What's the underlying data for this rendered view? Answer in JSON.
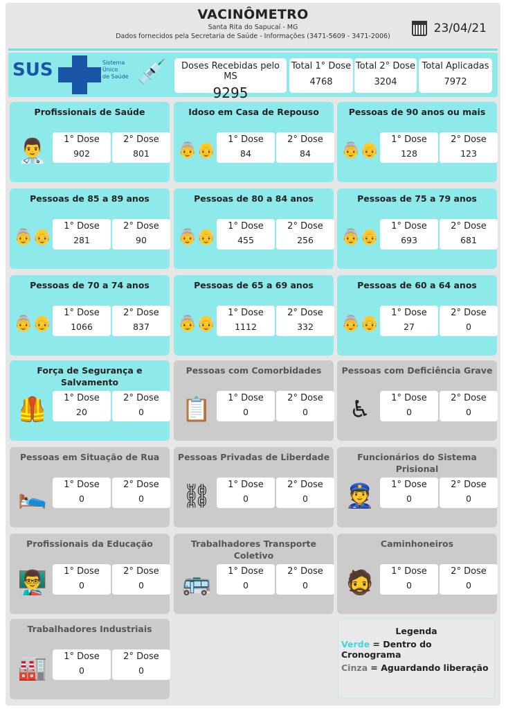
{
  "header": {
    "title": "VACINÔMETRO",
    "city": "Santa Rita do Sapucaí - MG",
    "source": "Dados fornecidos pela Secretaria de Saúde - Informações (3471-5609 - 3471-2006)",
    "date": "23/04/21"
  },
  "sus": {
    "logo": "SUS",
    "text1": "Sistema",
    "text2": "Único",
    "text3": "de Saúde"
  },
  "totals": [
    {
      "label": "Doses Recebidas pelo MS",
      "value": "9295"
    },
    {
      "label": "Total 1° Dose",
      "value": "4768"
    },
    {
      "label": "Total 2° Dose",
      "value": "3204"
    },
    {
      "label": "Total Aplicadas",
      "value": "7972"
    }
  ],
  "dose_labels": {
    "first": "1° Dose",
    "second": "2° Dose"
  },
  "colors": {
    "green": "#8eeaea",
    "gray": "#cbcbcb",
    "accent": "#3fd8e0"
  },
  "groups": [
    {
      "title": "Profissionais de Saúde",
      "d1": "902",
      "d2": "801",
      "status": "green",
      "icon": "health-worker-icon"
    },
    {
      "title": "Idoso em Casa de Repouso",
      "d1": "84",
      "d2": "84",
      "status": "green",
      "icon": "elderly-couple-icon"
    },
    {
      "title": "Pessoas de 90 anos ou mais",
      "d1": "128",
      "d2": "123",
      "status": "green",
      "icon": "elderly-couple-icon"
    },
    {
      "title": "Pessoas de 85 a 89 anos",
      "d1": "281",
      "d2": "90",
      "status": "green",
      "icon": "elderly-couple-icon"
    },
    {
      "title": "Pessoas de 80 a 84 anos",
      "d1": "455",
      "d2": "256",
      "status": "green",
      "icon": "elderly-couple-icon"
    },
    {
      "title": "Pessoas de 75 a 79 anos",
      "d1": "693",
      "d2": "681",
      "status": "green",
      "icon": "elderly-couple-icon"
    },
    {
      "title": "Pessoas de 70 a 74 anos",
      "d1": "1066",
      "d2": "837",
      "status": "green",
      "icon": "elderly-couple-icon"
    },
    {
      "title": "Pessoas de 65 a 69 anos",
      "d1": "1112",
      "d2": "332",
      "status": "green",
      "icon": "elderly-couple-icon"
    },
    {
      "title": "Pessoas de 60 a 64 anos",
      "d1": "27",
      "d2": "0",
      "status": "green",
      "icon": "elderly-couple-icon"
    },
    {
      "title": "Força de Segurança e Salvamento",
      "d1": "20",
      "d2": "0",
      "status": "green",
      "icon": "safety-vest-icon"
    },
    {
      "title": "Pessoas com Comorbidades",
      "d1": "0",
      "d2": "0",
      "status": "gray",
      "icon": "medical-report-icon"
    },
    {
      "title": "Pessoas com Deficiência Grave",
      "d1": "0",
      "d2": "0",
      "status": "gray",
      "icon": "wheelchair-icon"
    },
    {
      "title": "Pessoas em Situação de Rua",
      "d1": "0",
      "d2": "0",
      "status": "gray",
      "icon": "homeless-icon"
    },
    {
      "title": "Pessoas Privadas de Liberdade",
      "d1": "0",
      "d2": "0",
      "status": "gray",
      "icon": "handcuffs-icon"
    },
    {
      "title": "Funcionários do Sistema Prisional",
      "d1": "0",
      "d2": "0",
      "status": "gray",
      "icon": "police-officer-icon"
    },
    {
      "title": "Profissionais da Educação",
      "d1": "0",
      "d2": "0",
      "status": "gray",
      "icon": "teacher-icon"
    },
    {
      "title": "Trabalhadores Transporte Coletivo",
      "d1": "0",
      "d2": "0",
      "status": "gray",
      "icon": "bus-driver-icon"
    },
    {
      "title": "Caminhoneiros",
      "d1": "0",
      "d2": "0",
      "status": "gray",
      "icon": "truck-driver-icon"
    },
    {
      "title": "Trabalhadores Industriais",
      "d1": "0",
      "d2": "0",
      "status": "gray",
      "icon": "factory-worker-icon"
    }
  ],
  "legend": {
    "title": "Legenda",
    "green_word": "Verde",
    "green_text": " = Dentro do Cronograma",
    "gray_word": "Cinza",
    "gray_text": " = Aguardando liberação"
  }
}
